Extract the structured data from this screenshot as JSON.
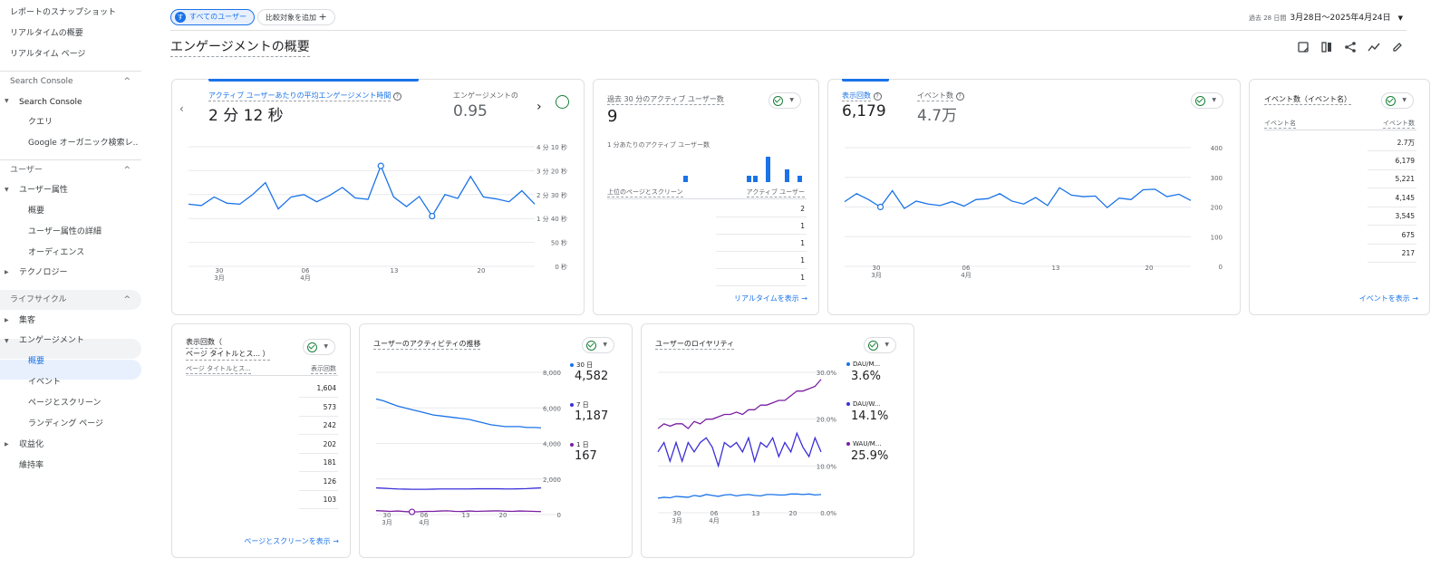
{
  "sidebar": {
    "top": [
      "レポートのスナップショット",
      "リアルタイムの概要",
      "リアルタイム ページ"
    ],
    "sc_header": "Search Console",
    "sc_group": "Search Console",
    "sc_items": [
      "クエリ",
      "Google オーガニック検索レ..."
    ],
    "user_header": "ユーザー",
    "user_group": "ユーザー属性",
    "user_items": [
      "概要",
      "ユーザー属性の詳細",
      "オーディエンス"
    ],
    "tech": "テクノロジー",
    "lifecycle_header": "ライフサイクル",
    "acq": "集客",
    "eng": "エンゲージメント",
    "eng_items": [
      "概要",
      "イベント",
      "ページとスクリーン",
      "ランディング ページ"
    ],
    "monet": "収益化",
    "retention": "維持率"
  },
  "top": {
    "chip_all": "すべてのユーザー",
    "chip_avatar": "す",
    "chip_add": "比較対象を追加",
    "date_label": "過去 28 日間",
    "date_range": "3月28日～2025年4月24日"
  },
  "page_title": "エンゲージメントの概要",
  "eng_card": {
    "metric1_label": "アクティブ ユーザーあたりの平均エンゲージメント時間",
    "metric1_value": "2 分 12 秒",
    "metric2_label": "エンゲージメントの",
    "metric2_value": "0.95",
    "y_ticks": [
      "4 分 10 秒",
      "3 分 20 秒",
      "2 分 30 秒",
      "1 分 40 秒",
      "50 秒",
      "0 秒"
    ],
    "x_ticks": [
      [
        "30",
        "3月"
      ],
      [
        "06",
        "4月"
      ],
      [
        "13",
        ""
      ],
      [
        "20",
        ""
      ]
    ]
  },
  "rt_card": {
    "label": "過去 30 分のアクティブ ユーザー数",
    "value": "9",
    "per_minute": "1 分あたりのアクティブ ユーザー数",
    "col1": "上位のページとスクリーン",
    "col2": "アクティブ ユーザー",
    "rows": [
      "2",
      "1",
      "1",
      "1",
      "1"
    ],
    "link": "リアルタイムを表示"
  },
  "views_card": {
    "m1_label": "表示回数",
    "m1_value": "6,179",
    "m2_label": "イベント数",
    "m2_value": "4.7万",
    "y_ticks": [
      "400",
      "300",
      "200",
      "100",
      "0"
    ],
    "x_ticks": [
      [
        "30",
        "3月"
      ],
      [
        "06",
        "4月"
      ],
      [
        "13",
        ""
      ],
      [
        "20",
        ""
      ]
    ]
  },
  "events_card": {
    "title": "イベント数（イベント名）",
    "col1": "イベント名",
    "col2": "イベント数",
    "rows": [
      "2.7万",
      "6,179",
      "5,221",
      "4,145",
      "3,545",
      "675",
      "217"
    ],
    "link": "イベントを表示"
  },
  "pages_card": {
    "title1": "表示回数（",
    "title2": "ページ タイトルとス... ）",
    "col1": "ページ タイトルとス...",
    "col2": "表示回数",
    "rows": [
      "1,604",
      "573",
      "242",
      "202",
      "181",
      "126",
      "103"
    ],
    "link": "ページとスクリーンを表示"
  },
  "activity_card": {
    "title": "ユーザーのアクティビティの推移",
    "y_ticks": [
      "8,000",
      "6,000",
      "4,000",
      "2,000",
      "0"
    ],
    "x_ticks": [
      [
        "30",
        "3月"
      ],
      [
        "06",
        "4月"
      ],
      [
        "13",
        ""
      ],
      [
        "20",
        ""
      ]
    ],
    "legend": [
      {
        "label": "30 日",
        "value": "4,582",
        "color": "#1a73e8"
      },
      {
        "label": "7 日",
        "value": "1,187",
        "color": "#3c2fd9"
      },
      {
        "label": "1 日",
        "value": "167",
        "color": "#7b1fa2"
      }
    ]
  },
  "loyalty_card": {
    "title": "ユーザーのロイヤリティ",
    "y_ticks": [
      "30.0%",
      "20.0%",
      "10.0%",
      "0.0%"
    ],
    "x_ticks": [
      [
        "30",
        "3月"
      ],
      [
        "06",
        "4月"
      ],
      [
        "13",
        ""
      ],
      [
        "20",
        ""
      ]
    ],
    "legend": [
      {
        "label": "DAU/M...",
        "value": "3.6%",
        "color": "#1a73e8"
      },
      {
        "label": "DAU/W...",
        "value": "14.1%",
        "color": "#3c2fd9"
      },
      {
        "label": "WAU/M...",
        "value": "25.9%",
        "color": "#7b1fa2"
      }
    ]
  },
  "colors": {
    "accent": "#1a73e8",
    "series2": "#3c2fd9",
    "series3": "#7b1fa2",
    "green": "#188038"
  }
}
